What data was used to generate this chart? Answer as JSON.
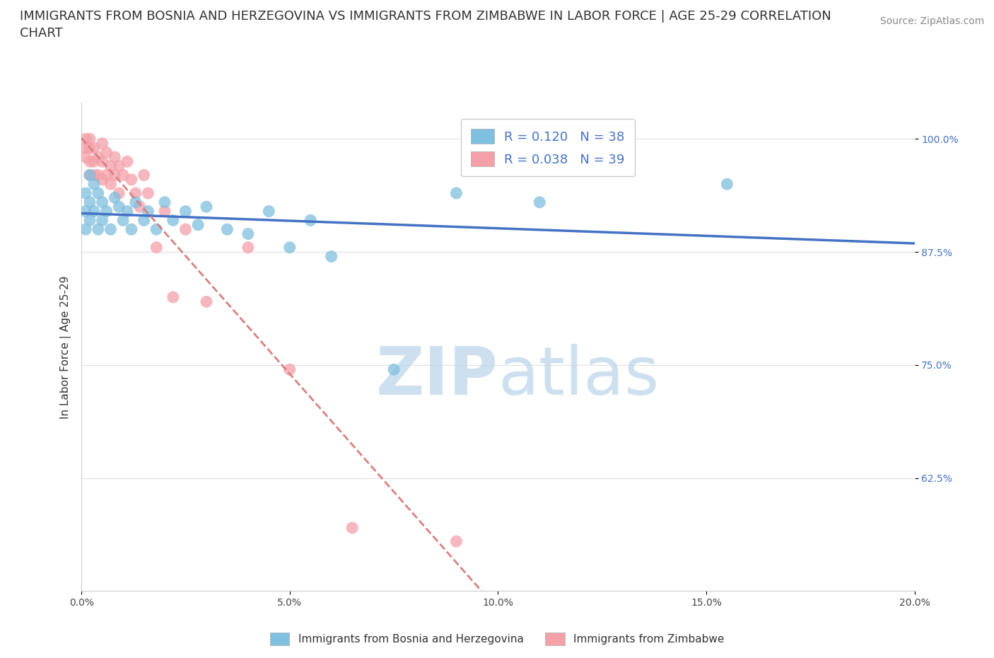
{
  "title": "IMMIGRANTS FROM BOSNIA AND HERZEGOVINA VS IMMIGRANTS FROM ZIMBABWE IN LABOR FORCE | AGE 25-29 CORRELATION\nCHART",
  "source": "Source: ZipAtlas.com",
  "ylabel": "In Labor Force | Age 25-29",
  "xlim": [
    0.0,
    0.2
  ],
  "ylim": [
    0.5,
    1.04
  ],
  "yticks": [
    0.625,
    0.75,
    0.875,
    1.0
  ],
  "ytick_labels": [
    "62.5%",
    "75.0%",
    "87.5%",
    "100.0%"
  ],
  "xticks": [
    0.0,
    0.05,
    0.1,
    0.15,
    0.2
  ],
  "xtick_labels": [
    "0.0%",
    "5.0%",
    "10.0%",
    "15.0%",
    "20.0%"
  ],
  "bosnia_color": "#7fbfdf",
  "zimbabwe_color": "#f4a0a8",
  "bosnia_R": 0.12,
  "bosnia_N": 38,
  "zimbabwe_R": 0.038,
  "zimbabwe_N": 39,
  "bosnia_scatter_x": [
    0.001,
    0.001,
    0.001,
    0.002,
    0.002,
    0.002,
    0.003,
    0.003,
    0.004,
    0.004,
    0.005,
    0.005,
    0.006,
    0.007,
    0.008,
    0.009,
    0.01,
    0.011,
    0.012,
    0.013,
    0.015,
    0.016,
    0.018,
    0.02,
    0.022,
    0.025,
    0.028,
    0.03,
    0.035,
    0.04,
    0.045,
    0.05,
    0.055,
    0.06,
    0.075,
    0.09,
    0.11,
    0.155
  ],
  "bosnia_scatter_y": [
    0.94,
    0.92,
    0.9,
    0.96,
    0.93,
    0.91,
    0.95,
    0.92,
    0.94,
    0.9,
    0.93,
    0.91,
    0.92,
    0.9,
    0.935,
    0.925,
    0.91,
    0.92,
    0.9,
    0.93,
    0.91,
    0.92,
    0.9,
    0.93,
    0.91,
    0.92,
    0.905,
    0.925,
    0.9,
    0.895,
    0.92,
    0.88,
    0.91,
    0.87,
    0.745,
    0.94,
    0.93,
    0.95
  ],
  "zimbabwe_scatter_x": [
    0.001,
    0.001,
    0.001,
    0.002,
    0.002,
    0.002,
    0.002,
    0.003,
    0.003,
    0.003,
    0.004,
    0.004,
    0.005,
    0.005,
    0.005,
    0.006,
    0.006,
    0.007,
    0.007,
    0.008,
    0.008,
    0.009,
    0.009,
    0.01,
    0.011,
    0.012,
    0.013,
    0.014,
    0.015,
    0.016,
    0.018,
    0.02,
    0.022,
    0.025,
    0.03,
    0.04,
    0.05,
    0.065,
    0.09
  ],
  "zimbabwe_scatter_y": [
    1.0,
    0.99,
    0.98,
    1.0,
    0.99,
    0.975,
    0.96,
    0.99,
    0.975,
    0.96,
    0.98,
    0.96,
    0.995,
    0.975,
    0.955,
    0.985,
    0.96,
    0.97,
    0.95,
    0.98,
    0.96,
    0.97,
    0.94,
    0.96,
    0.975,
    0.955,
    0.94,
    0.925,
    0.96,
    0.94,
    0.88,
    0.92,
    0.825,
    0.9,
    0.82,
    0.88,
    0.745,
    0.57,
    0.555
  ],
  "trend_line_color_blue": "#4472c4",
  "trend_line_color_pink": "#d98080",
  "watermark_part1": "ZIP",
  "watermark_part2": "atlas",
  "watermark_color": "#c8dff0",
  "title_fontsize": 13,
  "axis_label_fontsize": 11,
  "tick_fontsize": 10,
  "legend_fontsize": 13,
  "source_fontsize": 10
}
